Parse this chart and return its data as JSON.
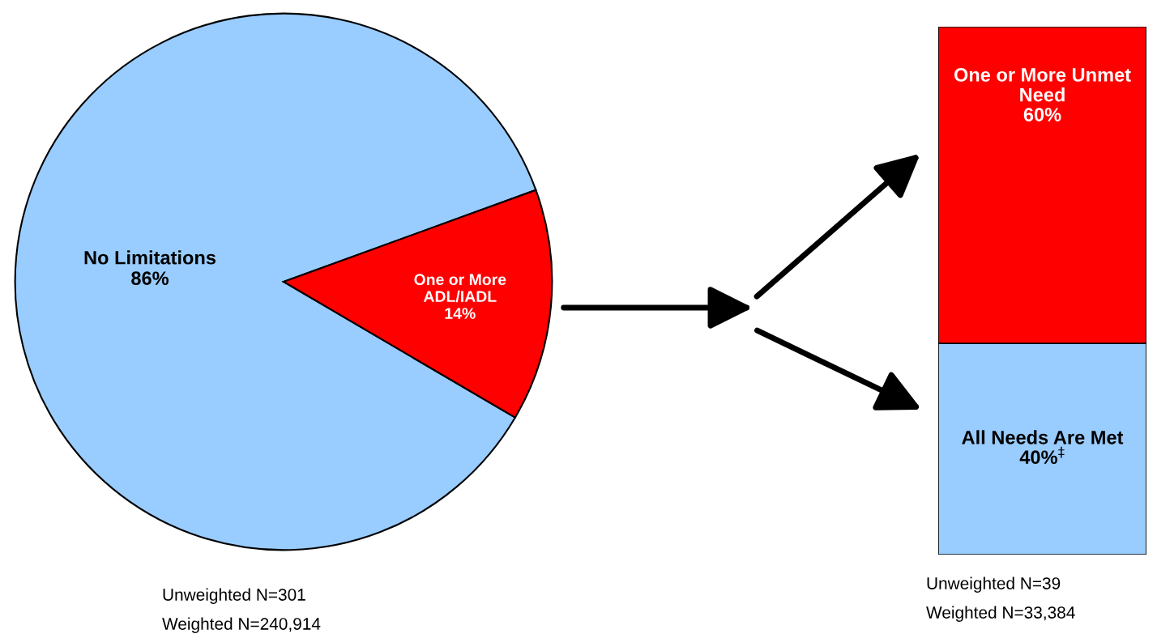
{
  "chart_data": [
    {
      "type": "pie",
      "categories": [
        "No Limitations",
        "One or More ADL/IADL"
      ],
      "values": [
        86,
        14
      ],
      "colors": [
        "#99ccff",
        "#ff0000"
      ],
      "value_labels": [
        "86%",
        "14%"
      ],
      "annotations": [
        "Unweighted N=301",
        "Weighted N=240,914"
      ]
    },
    {
      "type": "bar",
      "stacked": true,
      "categories": [
        null
      ],
      "ylim": [
        0,
        100
      ],
      "tick_labels": false,
      "series": [
        {
          "name": "All Needs Are Met",
          "color": "#99ccff",
          "values": [
            40
          ],
          "value_labels": [
            "40%$^{‡}$"
          ]
        },
        {
          "name": "One or More Unmet Need",
          "color": "#ff0000",
          "values": [
            60
          ],
          "value_labels": [
            "60%"
          ]
        }
      ],
      "annotations": [
        "Unweighted N=39",
        "Weighted N=33,384"
      ]
    }
  ]
}
